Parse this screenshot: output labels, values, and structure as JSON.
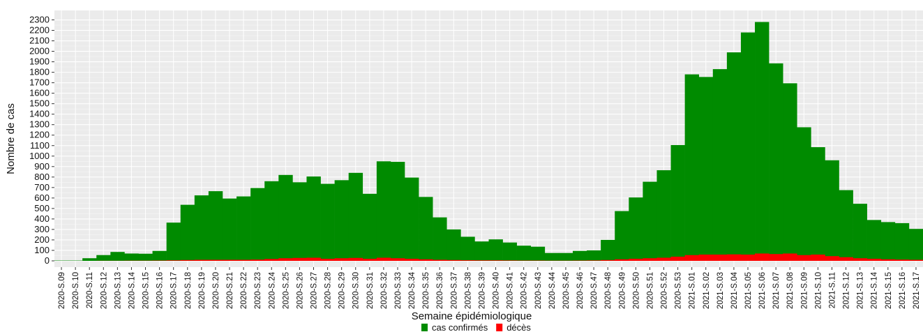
{
  "chart_data": {
    "type": "bar",
    "y_label": "Nombre de cas",
    "x_label": "Semaine épidémiologique",
    "categories": [
      "2020-S.09",
      "2020-S.10",
      "2020-S.11",
      "2020-S.12",
      "2020-S.13",
      "2020-S.14",
      "2020-S.15",
      "2020-S.16",
      "2020-S.17",
      "2020-S.18",
      "2020-S.19",
      "2020-S.20",
      "2020-S.21",
      "2020-S.22",
      "2020-S.23",
      "2020-S.24",
      "2020-S.25",
      "2020-S.26",
      "2020-S.27",
      "2020-S.28",
      "2020-S.29",
      "2020-S.30",
      "2020-S.31",
      "2020-S.32",
      "2020-S.33",
      "2020-S.34",
      "2020-S.35",
      "2020-S.36",
      "2020-S.37",
      "2020-S.38",
      "2020-S.39",
      "2020-S.40",
      "2020-S.41",
      "2020-S.42",
      "2020-S.43",
      "2020-S.44",
      "2020-S.45",
      "2020-S.46",
      "2020-S.47",
      "2020-S.48",
      "2020-S.49",
      "2020-S.50",
      "2020-S.51",
      "2020-S.52",
      "2020-S.53",
      "2021-S.01",
      "2021-S.02",
      "2021-S.03",
      "2021-S.04",
      "2021-S.05",
      "2021-S.06",
      "2021-S.07",
      "2021-S.08",
      "2021-S.09",
      "2021-S.10",
      "2021-S.11",
      "2021-S.12",
      "2021-S.13",
      "2021-S.14",
      "2021-S.15",
      "2021-S.16",
      "2021-S.17"
    ],
    "series": [
      {
        "name": "cas confirmés",
        "color": "#008b00",
        "values": [
          3,
          3,
          25,
          55,
          85,
          70,
          68,
          95,
          365,
          535,
          625,
          665,
          595,
          615,
          695,
          760,
          820,
          750,
          805,
          735,
          770,
          840,
          640,
          950,
          945,
          795,
          610,
          415,
          300,
          230,
          185,
          205,
          175,
          145,
          135,
          75,
          75,
          95,
          100,
          200,
          475,
          605,
          755,
          865,
          1105,
          1780,
          1755,
          1830,
          1990,
          2180,
          2280,
          1885,
          1695,
          1275,
          1085,
          960,
          675,
          545,
          390,
          370,
          360,
          305
        ]
      },
      {
        "name": "décès",
        "color": "#ff0000",
        "values": [
          0,
          0,
          0,
          1,
          1,
          2,
          2,
          3,
          5,
          8,
          10,
          10,
          10,
          10,
          12,
          18,
          25,
          28,
          30,
          20,
          25,
          28,
          20,
          30,
          25,
          20,
          15,
          10,
          8,
          6,
          5,
          5,
          4,
          3,
          3,
          2,
          2,
          3,
          4,
          8,
          15,
          20,
          25,
          30,
          40,
          55,
          60,
          60,
          62,
          60,
          70,
          65,
          70,
          55,
          60,
          45,
          35,
          25,
          20,
          15,
          12,
          10
        ]
      }
    ],
    "ylim": [
      -60,
      2390
    ],
    "yticks": [
      0,
      100,
      200,
      300,
      400,
      500,
      600,
      700,
      800,
      900,
      1000,
      1100,
      1200,
      1300,
      1400,
      1500,
      1600,
      1700,
      1800,
      1900,
      2000,
      2100,
      2200,
      2300
    ],
    "grid": true
  }
}
